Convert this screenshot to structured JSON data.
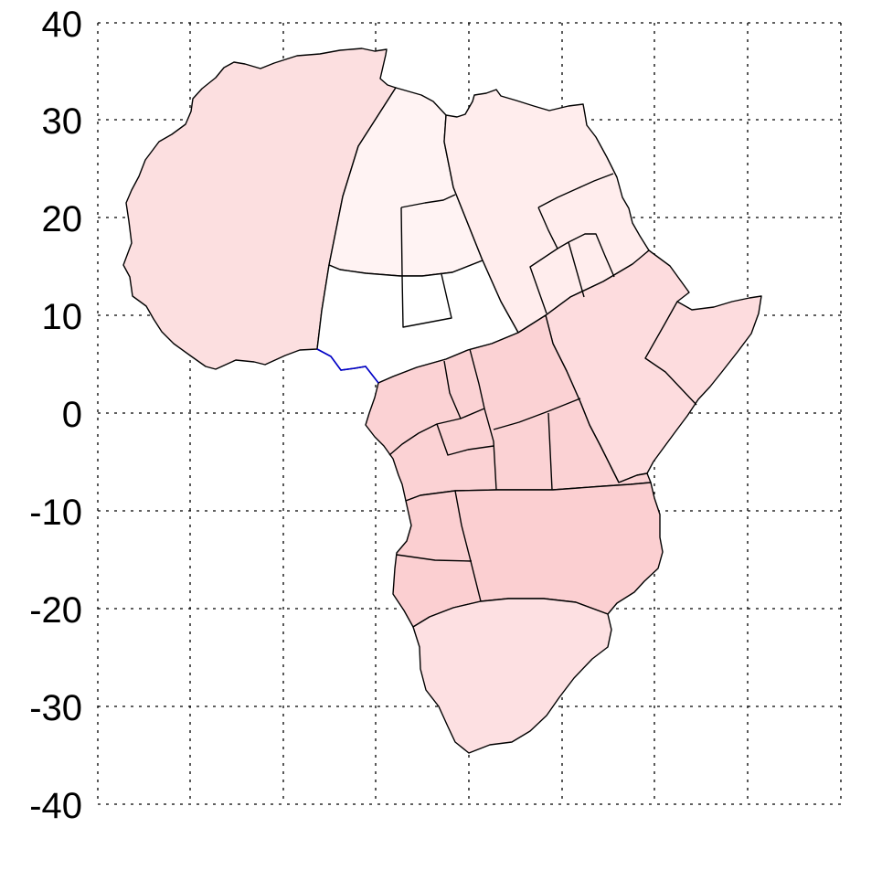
{
  "chart_data": {
    "type": "heatmap",
    "title": "",
    "xlabel": "",
    "ylabel": "",
    "ylim": [
      -40,
      40
    ],
    "grid": true,
    "y_ticks": [
      "40",
      "30",
      "20",
      "10",
      "0",
      "-10",
      "-20",
      "-30",
      "-40"
    ],
    "x_ticks": [],
    "colors": {
      "northwest": "#fcdfe0",
      "north_central": "#fff3f3",
      "northeast": "#ffeded",
      "sahel": "#ffffff",
      "east": "#fddcde",
      "central": "#fbd2d4",
      "south_central": "#fbcfd1",
      "south": "#fde0e2",
      "coast_line": "#0000cc"
    }
  }
}
